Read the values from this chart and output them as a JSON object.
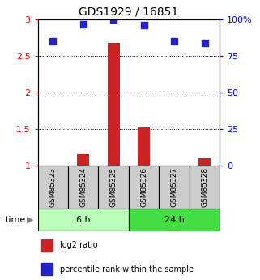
{
  "title": "GDS1929 / 16851",
  "samples": [
    "GSM85323",
    "GSM85324",
    "GSM85325",
    "GSM85326",
    "GSM85327",
    "GSM85328"
  ],
  "log2_ratio": [
    1.0,
    1.15,
    2.68,
    1.52,
    1.0,
    1.1
  ],
  "percentile_rank": [
    85,
    97,
    100,
    96,
    85,
    84
  ],
  "groups": [
    {
      "label": "6 h",
      "indices": [
        0,
        1,
        2
      ],
      "color": "#bbffbb"
    },
    {
      "label": "24 h",
      "indices": [
        3,
        4,
        5
      ],
      "color": "#44dd44"
    }
  ],
  "ylim_left": [
    1.0,
    3.0
  ],
  "ylim_right": [
    0,
    100
  ],
  "yticks_left": [
    1.0,
    1.5,
    2.0,
    2.5,
    3.0
  ],
  "yticks_right": [
    0,
    25,
    50,
    75,
    100
  ],
  "ytick_labels_left": [
    "1",
    "1.5",
    "2",
    "2.5",
    "3"
  ],
  "ytick_labels_right": [
    "0",
    "25",
    "50",
    "75",
    "100%"
  ],
  "bar_color": "#cc2222",
  "dot_color": "#2222cc",
  "bar_width": 0.4,
  "dot_size": 40,
  "label_bar": "log2 ratio",
  "label_dot": "percentile rank within the sample",
  "time_label": "time"
}
